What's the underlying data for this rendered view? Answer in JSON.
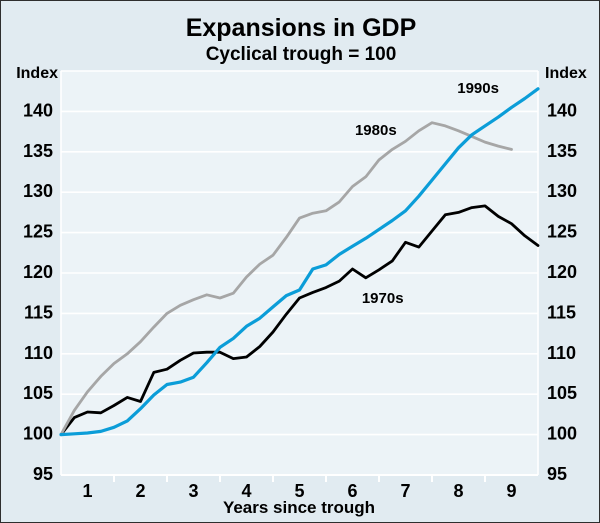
{
  "title": "Expansions in GDP",
  "subtitle": "Cyclical trough = 100",
  "axis": {
    "unit_left": "Index",
    "unit_right": "Index",
    "xlabel": "Years since trough"
  },
  "colors": {
    "panel_background": "#e1ebf1",
    "plot_background": "#ecf3f7",
    "gridline": "#ffffff",
    "line_1970s": "#000000",
    "line_1980s": "#a6a6a6",
    "line_1990s": "#0b9dd8",
    "text": "#000000"
  },
  "chart_data": {
    "type": "line",
    "title": "Expansions in GDP",
    "subtitle": "Cyclical trough = 100",
    "xlabel": "Years since trough",
    "ylabel": "Index",
    "xlim": [
      0,
      9
    ],
    "ylim": [
      95,
      145
    ],
    "grid": true,
    "y_ticks": [
      95,
      100,
      105,
      110,
      115,
      120,
      125,
      130,
      135,
      140
    ],
    "y_tick_labels": [
      "95",
      "100",
      "105",
      "110",
      "115",
      "120",
      "125",
      "130",
      "135",
      "140"
    ],
    "x_tick_marks": [
      1,
      2,
      3,
      4,
      5,
      6,
      7,
      8
    ],
    "x_interval_labels": [
      "1",
      "2",
      "3",
      "4",
      "5",
      "6",
      "7",
      "8",
      "9"
    ],
    "x_step": 0.25,
    "series": [
      {
        "name": "1970s",
        "color": "#000000",
        "width": 2.8,
        "x_start": 0,
        "values": [
          100,
          102.1,
          102.8,
          102.7,
          103.6,
          104.6,
          104.1,
          107.7,
          108.1,
          109.2,
          110.1,
          110.2,
          110.2,
          109.4,
          109.6,
          110.9,
          112.7,
          114.9,
          116.9,
          117.6,
          118.2,
          119.0,
          120.5,
          119.4,
          120.4,
          121.5,
          123.8,
          123.2,
          125.2,
          127.2,
          127.5,
          128.1,
          128.3,
          127.0,
          126.1,
          124.6,
          123.4
        ],
        "label": {
          "text": "1970s",
          "x": 6.07,
          "y": 116.9
        }
      },
      {
        "name": "1980s",
        "color": "#a6a6a6",
        "width": 2.8,
        "x_start": 0,
        "values": [
          100,
          103.0,
          105.3,
          107.2,
          108.8,
          110.0,
          111.5,
          113.3,
          115.0,
          116.0,
          116.7,
          117.3,
          116.9,
          117.5,
          119.5,
          121.1,
          122.2,
          124.4,
          126.8,
          127.4,
          127.7,
          128.8,
          130.7,
          131.9,
          134.0,
          135.3,
          136.3,
          137.6,
          138.6,
          138.2,
          137.6,
          136.9,
          136.2,
          135.7,
          135.3
        ],
        "label": {
          "text": "1980s",
          "x": 5.94,
          "y": 137.7
        }
      },
      {
        "name": "1990s",
        "color": "#0b9dd8",
        "width": 3.2,
        "x_start": 0,
        "values": [
          100,
          100.1,
          100.2,
          100.4,
          100.9,
          101.7,
          103.2,
          104.9,
          106.2,
          106.5,
          107.1,
          108.9,
          110.8,
          111.9,
          113.4,
          114.4,
          115.8,
          117.2,
          117.9,
          120.5,
          121.0,
          122.3,
          123.3,
          124.3,
          125.4,
          126.5,
          127.7,
          129.5,
          131.5,
          133.5,
          135.5,
          137.1,
          138.2,
          139.3,
          140.5,
          141.6,
          142.8
        ],
        "label": {
          "text": "1990s",
          "x": 7.87,
          "y": 142.9
        }
      }
    ],
    "legend_position": "in-plot-labels"
  }
}
